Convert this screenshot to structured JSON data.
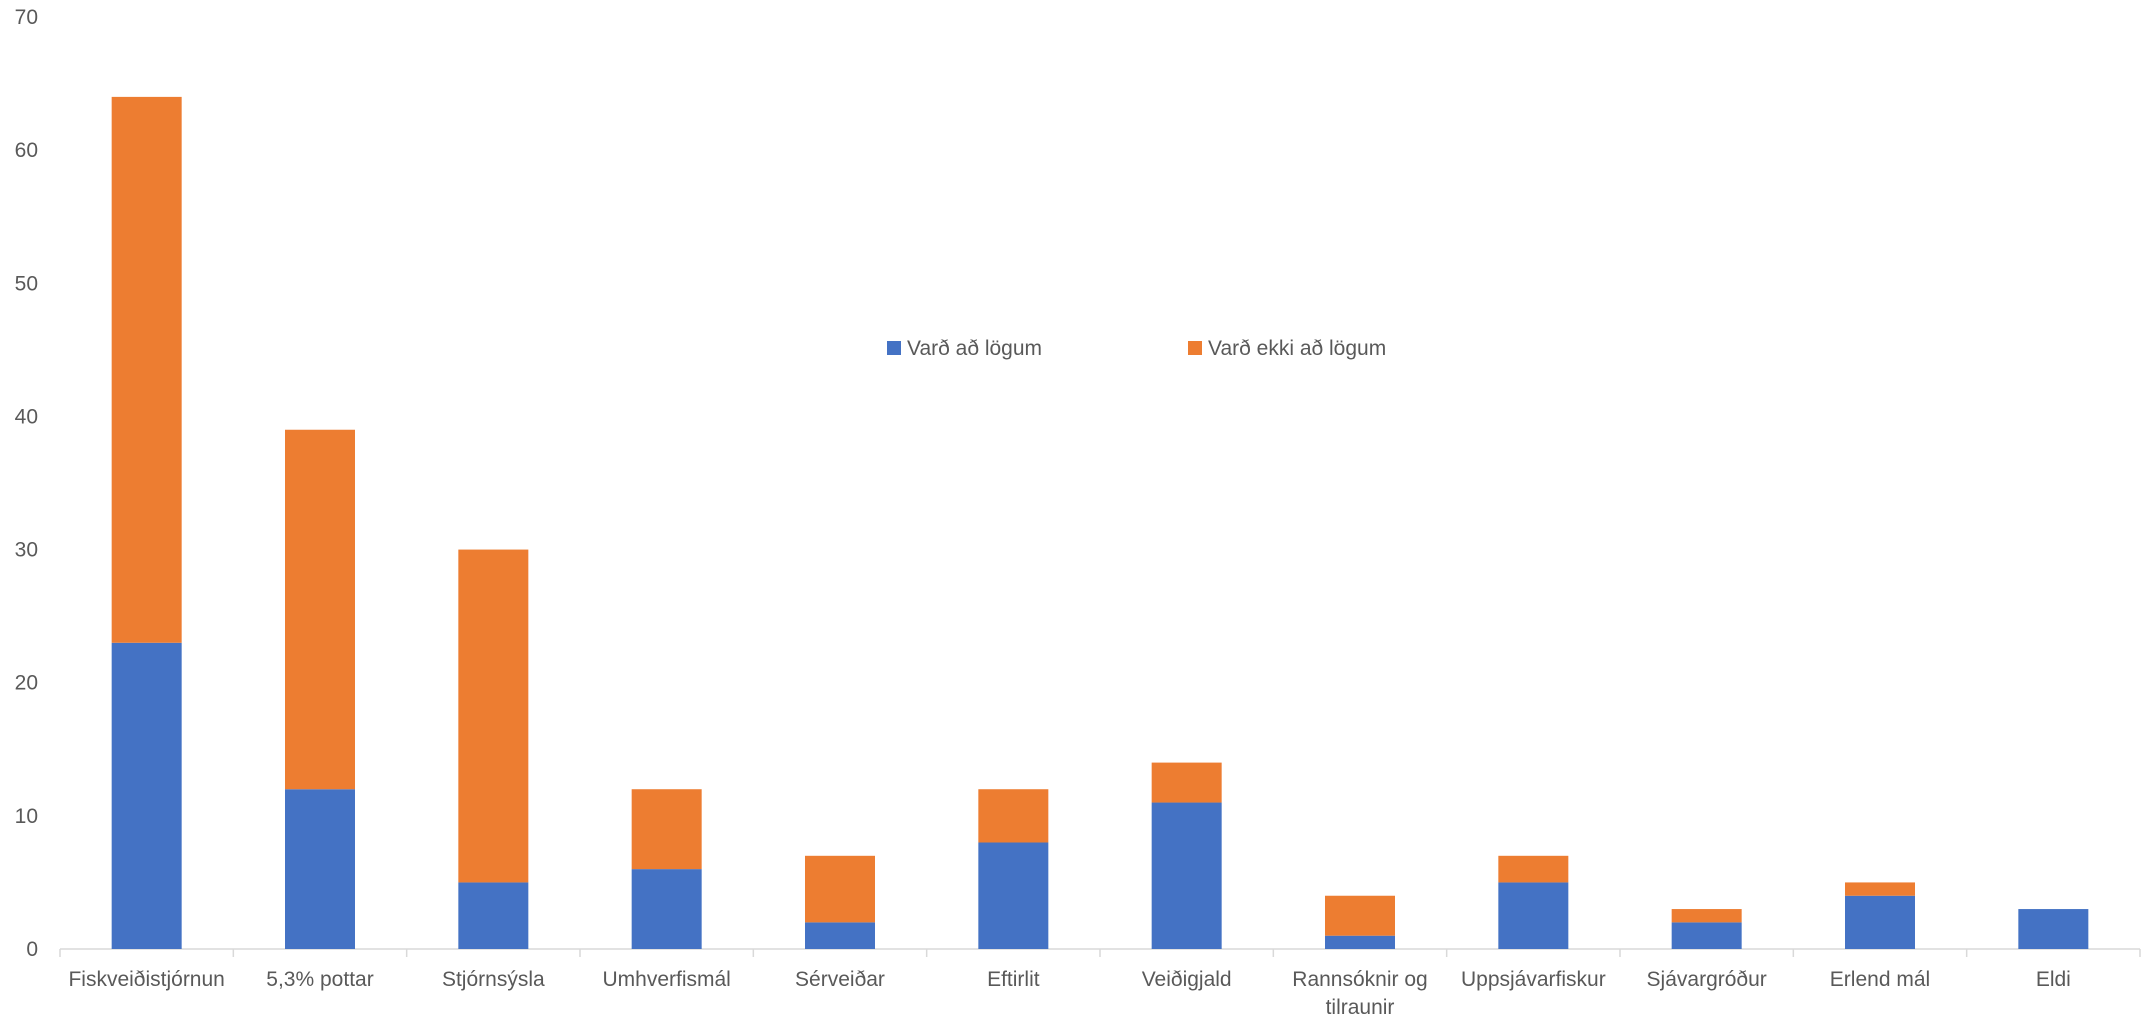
{
  "chart_data": {
    "type": "bar",
    "stacked": true,
    "title": "",
    "xlabel": "",
    "ylabel": "",
    "ylim": [
      0,
      70
    ],
    "yticks": [
      0,
      10,
      20,
      30,
      40,
      50,
      60,
      70
    ],
    "grid": false,
    "legend_position": "top-center",
    "categories": [
      "Fiskveiðistjórnun",
      "5,3% pottar",
      "Stjórnsýsla",
      "Umhverfismál",
      "Sérveiðar",
      "Eftirlit",
      "Veiðigjald",
      "Rannsóknir og tilraunir",
      "Uppsjávarfiskur",
      "Sjávargróður",
      "Erlend mál",
      "Eldi"
    ],
    "series": [
      {
        "name": "Varð að lögum",
        "color": "#4472C4",
        "values": [
          23,
          12,
          5,
          6,
          2,
          8,
          11,
          1,
          5,
          2,
          4,
          3
        ]
      },
      {
        "name": "Varð ekki að lögum",
        "color": "#ED7D31",
        "values": [
          41,
          27,
          25,
          6,
          5,
          4,
          3,
          3,
          2,
          1,
          1,
          0
        ]
      }
    ]
  }
}
